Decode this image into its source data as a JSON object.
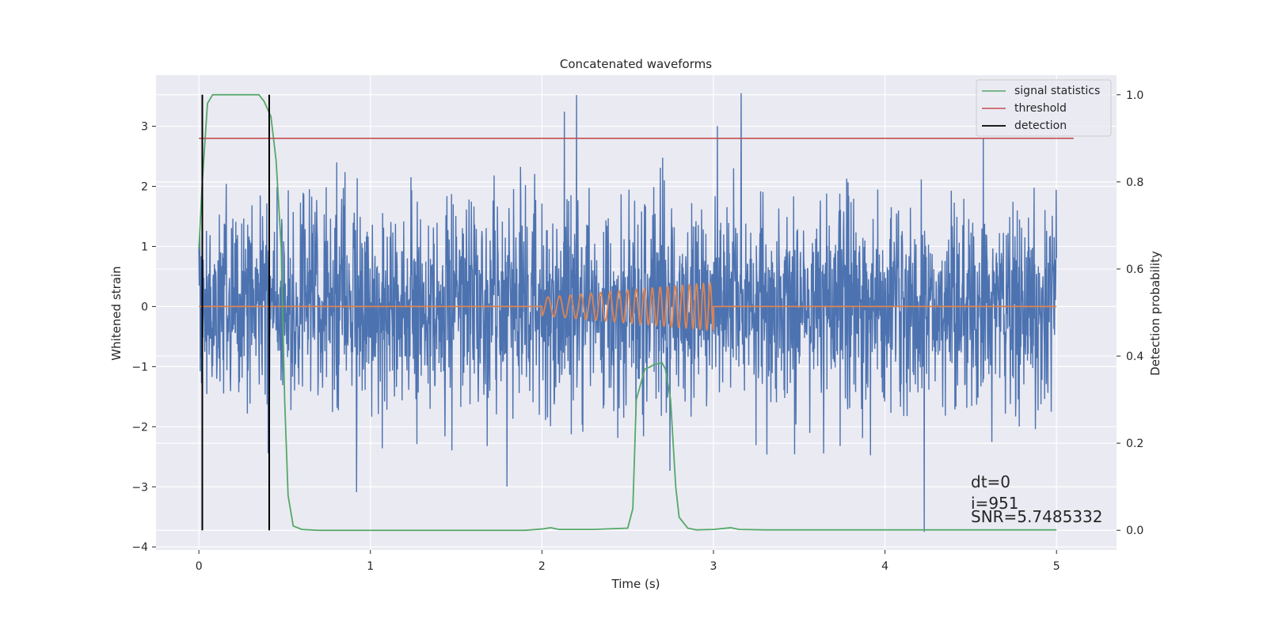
{
  "chart_data": {
    "type": "line",
    "title": "Concatenated waveforms",
    "xlabel": "Time (s)",
    "ylabel_left": "Whitened strain",
    "ylabel_right": "Detection probability",
    "xlim": [
      -0.25,
      5.35
    ],
    "ylim_left": [
      -4.05,
      3.85
    ],
    "ylim_right": [
      -0.045,
      1.045
    ],
    "xticks": [
      0,
      1,
      2,
      3,
      4,
      5
    ],
    "yticks_left": [
      -4,
      -3,
      -2,
      -1,
      0,
      1,
      2,
      3
    ],
    "yticks_right": [
      0.0,
      0.2,
      0.4,
      0.6,
      0.8,
      1.0
    ],
    "ytick_labels_left": [
      "−4",
      "−3",
      "−2",
      "−1",
      "0",
      "1",
      "2",
      "3"
    ],
    "ytick_labels_right": [
      "0.0",
      "0.2",
      "0.4",
      "0.6",
      "0.8",
      "1.0"
    ],
    "grid": true,
    "legend_position": "top-right",
    "noise": {
      "x_range": [
        0.0,
        5.0
      ],
      "envelope_typical": 1.0,
      "peak_max": 3.55,
      "trough_min": -3.75,
      "color": "#4c72b0"
    },
    "injected_signal": {
      "x_range": [
        2.0,
        3.0
      ],
      "cycles": 20,
      "amplitude_start": 0.15,
      "amplitude_end": 0.4,
      "color": "#dd8452"
    },
    "series": [
      {
        "name": "signal statistics",
        "axis": "right",
        "color": "#55a868",
        "x": [
          0.0,
          0.02,
          0.05,
          0.08,
          0.35,
          0.38,
          0.42,
          0.45,
          0.48,
          0.5,
          0.52,
          0.55,
          0.6,
          0.7,
          1.0,
          1.5,
          1.9,
          2.0,
          2.05,
          2.1,
          2.3,
          2.5,
          2.53,
          2.55,
          2.6,
          2.63,
          2.65,
          2.7,
          2.72,
          2.75,
          2.78,
          2.8,
          2.85,
          2.9,
          3.0,
          3.1,
          3.15,
          3.3,
          4.0,
          4.8,
          5.0
        ],
        "values": [
          0.645,
          0.8,
          0.98,
          1.0,
          1.0,
          0.985,
          0.95,
          0.85,
          0.65,
          0.3,
          0.08,
          0.01,
          0.002,
          0.0,
          0.0,
          0.0,
          0.0,
          0.003,
          0.006,
          0.002,
          0.002,
          0.005,
          0.05,
          0.3,
          0.37,
          0.375,
          0.38,
          0.385,
          0.37,
          0.3,
          0.1,
          0.03,
          0.005,
          0.001,
          0.002,
          0.006,
          0.002,
          0.001,
          0.001,
          0.001,
          0.001
        ]
      },
      {
        "name": "threshold",
        "axis": "right",
        "color": "#c44e52",
        "x": [
          0.0,
          5.1
        ],
        "values": [
          0.9,
          0.9
        ]
      },
      {
        "name": "detection",
        "axis": "right",
        "color": "#000000",
        "vlines": [
          0.02,
          0.41
        ],
        "ymin": 0.0,
        "ymax": 1.0
      }
    ],
    "annotations": [
      "dt=0",
      "i=951",
      "SNR=5.7485332"
    ]
  }
}
